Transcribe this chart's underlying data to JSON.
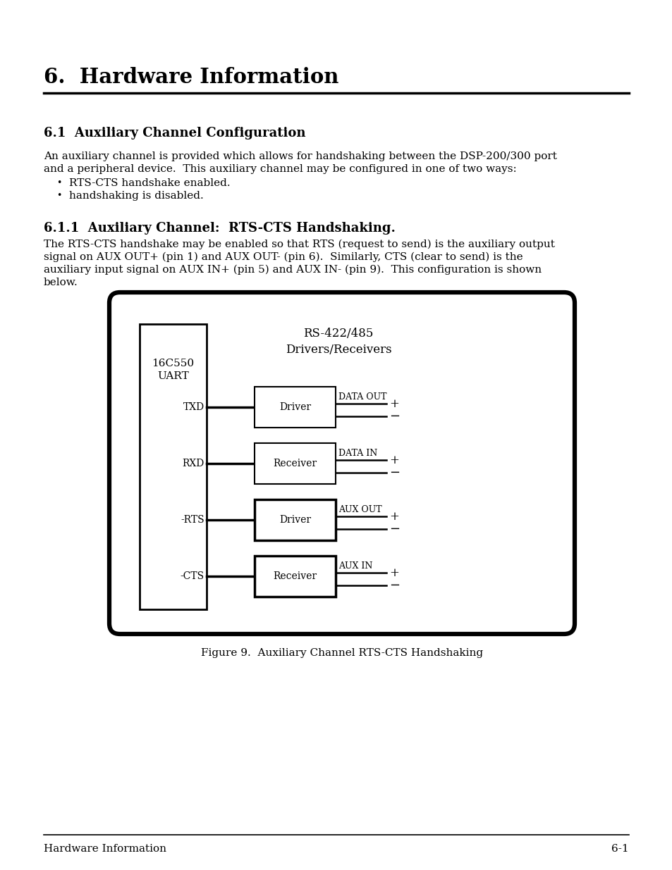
{
  "title": "6.  Hardware Information",
  "section1_title": "6.1  Auxiliary Channel Configuration",
  "section1_body_line1": "An auxiliary channel is provided which allows for handshaking between the DSP-200/300 port",
  "section1_body_line2": "and a peripheral device.  This auxiliary channel may be configured in one of two ways:",
  "bullet1": "RTS-CTS handshake enabled.",
  "bullet2": "handshaking is disabled.",
  "section2_title": "6.1.1  Auxiliary Channel:  RTS-CTS Handshaking.",
  "section2_body_line1": "The RTS-CTS handshake may be enabled so that RTS (request to send) is the auxiliary output",
  "section2_body_line2": "signal on AUX OUT+ (pin 1) and AUX OUT- (pin 6).  Similarly, CTS (clear to send) is the",
  "section2_body_line3": "auxiliary input signal on AUX IN+ (pin 5) and AUX IN- (pin 9).  This configuration is shown",
  "section2_body_line4": "below.",
  "figure_caption": "Figure 9.  Auxiliary Channel RTS-CTS Handshaking",
  "footer_left": "Hardware Information",
  "footer_right": "6-1",
  "diagram": {
    "uart_label": "16C550\nUART",
    "rs_label": "RS-422/485\nDrivers/Receivers",
    "signals": [
      "TXD",
      "RXD",
      "-RTS",
      "-CTS"
    ],
    "boxes": [
      "Driver",
      "Receiver",
      "Driver",
      "Receiver"
    ],
    "outputs": [
      "DATA OUT",
      "DATA IN",
      "AUX OUT",
      "AUX IN"
    ]
  },
  "bg_color": "#ffffff",
  "text_color": "#000000",
  "font_family": "serif"
}
